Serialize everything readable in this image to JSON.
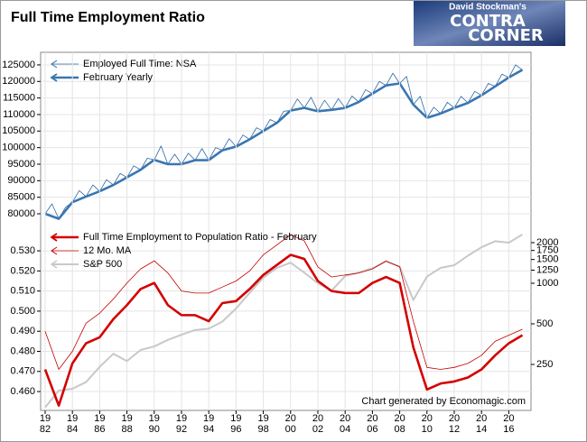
{
  "logo": {
    "byline": "David Stockman's",
    "line1": "CONTRA",
    "line2": "CORNER"
  },
  "chart_data": [
    {
      "type": "line",
      "title": "Full Time Employment Ratio",
      "legend": "upper left",
      "grid": true,
      "xlim": [
        1981.67,
        2017.63
      ],
      "ylim": [
        76460,
        128800
      ],
      "yticks": [
        80000,
        85000,
        90000,
        95000,
        100000,
        105000,
        110000,
        115000,
        120000,
        125000
      ],
      "series": [
        {
          "name": "Employed Full Time: NSA",
          "color": "#2f6aa8",
          "width": 0.8,
          "x": [
            1982,
            1982.5,
            1983,
            1983.5,
            1984,
            1984.5,
            1985,
            1985.5,
            1986,
            1986.5,
            1987,
            1987.5,
            1988,
            1988.5,
            1989,
            1989.5,
            1990,
            1990.5,
            1991,
            1991.5,
            1992,
            1992.5,
            1993,
            1993.5,
            1994,
            1994.5,
            1995,
            1995.5,
            1996,
            1996.5,
            1997,
            1997.5,
            1998,
            1998.5,
            1999,
            1999.5,
            2000,
            2000.5,
            2001,
            2001.5,
            2002,
            2002.5,
            2003,
            2003.5,
            2004,
            2004.5,
            2005,
            2005.5,
            2006,
            2006.5,
            2007,
            2007.5,
            2008,
            2008.5,
            2009,
            2009.5,
            2010,
            2010.5,
            2011,
            2011.5,
            2012,
            2012.5,
            2013,
            2013.5,
            2014,
            2014.5,
            2015,
            2015.5,
            2016,
            2016.5,
            2017
          ],
          "values": [
            80000,
            83000,
            78500,
            82000,
            83500,
            87000,
            85200,
            88700,
            86800,
            90300,
            88700,
            92200,
            91000,
            94500,
            93300,
            96800,
            96300,
            100500,
            95000,
            98000,
            95000,
            98300,
            96200,
            99700,
            96200,
            100000,
            99200,
            102700,
            100300,
            103800,
            102500,
            106000,
            105000,
            108500,
            107500,
            111000,
            111200,
            114700,
            112000,
            115200,
            111000,
            114300,
            111400,
            114800,
            112000,
            115600,
            113800,
            117500,
            116300,
            120000,
            118800,
            122500,
            119400,
            121500,
            113000,
            115500,
            109000,
            112200,
            110300,
            113700,
            112000,
            115500,
            113500,
            117000,
            115800,
            119400,
            118500,
            122200,
            121200,
            125000,
            123500
          ]
        },
        {
          "name": "February Yearly",
          "color": "#3a76b0",
          "width": 2.6,
          "x": [
            1982,
            1983,
            1984,
            1985,
            1986,
            1987,
            1988,
            1989,
            1990,
            1991,
            1992,
            1993,
            1994,
            1995,
            1996,
            1997,
            1998,
            1999,
            2000,
            2001,
            2002,
            2003,
            2004,
            2005,
            2006,
            2007,
            2008,
            2009,
            2010,
            2011,
            2012,
            2013,
            2014,
            2015,
            2016,
            2017
          ],
          "values": [
            80000,
            78500,
            83500,
            85200,
            86800,
            88700,
            91000,
            93300,
            96300,
            95000,
            95000,
            96200,
            96200,
            99200,
            100300,
            102500,
            105000,
            107500,
            111200,
            112000,
            111000,
            111400,
            112000,
            113800,
            116300,
            118800,
            119400,
            113000,
            109000,
            110300,
            112000,
            113500,
            115800,
            118500,
            121200,
            123500
          ]
        }
      ]
    },
    {
      "type": "line",
      "legend": "upper left",
      "grid": true,
      "annotation": "Chart generated by Economagic.com",
      "xlim": [
        1981.67,
        2017.63
      ],
      "ylim": [
        0.4506,
        0.5426
      ],
      "xticks": [
        {
          "value": 1982,
          "label": "19 82"
        },
        {
          "value": 1984,
          "label": "19 84"
        },
        {
          "value": 1986,
          "label": "19 86"
        },
        {
          "value": 1988,
          "label": "19 88"
        },
        {
          "value": 1990,
          "label": "19 90"
        },
        {
          "value": 1992,
          "label": "19 92"
        },
        {
          "value": 1994,
          "label": "19 94"
        },
        {
          "value": 1996,
          "label": "19 96"
        },
        {
          "value": 1998,
          "label": "19 98"
        },
        {
          "value": 2000,
          "label": "20 00"
        },
        {
          "value": 2002,
          "label": "20 02"
        },
        {
          "value": 2004,
          "label": "20 04"
        },
        {
          "value": 2006,
          "label": "20 06"
        },
        {
          "value": 2008,
          "label": "20 08"
        },
        {
          "value": 2010,
          "label": "20 10"
        },
        {
          "value": 2012,
          "label": "20 12"
        },
        {
          "value": 2014,
          "label": "20 14"
        },
        {
          "value": 2016,
          "label": "20 16"
        }
      ],
      "yticks": [
        {
          "value": 0.46,
          "label": "0.460"
        },
        {
          "value": 0.47,
          "label": "0.470"
        },
        {
          "value": 0.48,
          "label": "0.480"
        },
        {
          "value": 0.49,
          "label": "0.490"
        },
        {
          "value": 0.5,
          "label": "0.500"
        },
        {
          "value": 0.51,
          "label": "0.510"
        },
        {
          "value": 0.52,
          "label": "0.520"
        },
        {
          "value": 0.53,
          "label": "0.530"
        }
      ],
      "y2lim": [
        114,
        2680
      ],
      "y2log": true,
      "y2ticks": [
        250,
        500,
        1000,
        1250,
        1500,
        1750,
        2000
      ],
      "series": [
        {
          "name": "Full Time Employment to Population Ratio - February",
          "color": "#d40000",
          "width": 2.6,
          "x": [
            1982,
            1983,
            1984,
            1985,
            1986,
            1987,
            1988,
            1989,
            1990,
            1991,
            1992,
            1993,
            1994,
            1995,
            1996,
            1997,
            1998,
            1999,
            2000,
            2001,
            2002,
            2003,
            2004,
            2005,
            2006,
            2007,
            2008,
            2009,
            2010,
            2011,
            2012,
            2013,
            2014,
            2015,
            2016,
            2017
          ],
          "values": [
            0.471,
            0.453,
            0.474,
            0.484,
            0.487,
            0.496,
            0.503,
            0.511,
            0.514,
            0.503,
            0.498,
            0.498,
            0.495,
            0.504,
            0.505,
            0.511,
            0.518,
            0.523,
            0.528,
            0.526,
            0.515,
            0.51,
            0.509,
            0.509,
            0.514,
            0.517,
            0.514,
            0.482,
            0.461,
            0.464,
            0.465,
            0.467,
            0.471,
            0.478,
            0.484,
            0.488
          ]
        },
        {
          "name": "12 Mo. MA",
          "color": "#c40000",
          "width": 0.8,
          "x": [
            1982,
            1983,
            1984,
            1985,
            1986,
            1987,
            1988,
            1989,
            1990,
            1991,
            1992,
            1993,
            1994,
            1995,
            1996,
            1997,
            1998,
            1999,
            2000,
            2001,
            2002,
            2003,
            2004,
            2005,
            2006,
            2007,
            2008,
            2009,
            2010,
            2011,
            2012,
            2013,
            2014,
            2015,
            2016,
            2017
          ],
          "values": [
            0.49,
            0.471,
            0.48,
            0.494,
            0.499,
            0.506,
            0.514,
            0.521,
            0.525,
            0.519,
            0.51,
            0.509,
            0.509,
            0.512,
            0.515,
            0.52,
            0.528,
            0.533,
            0.538,
            0.535,
            0.522,
            0.517,
            0.518,
            0.519,
            0.521,
            0.525,
            0.522,
            0.495,
            0.472,
            0.471,
            0.472,
            0.474,
            0.478,
            0.485,
            0.488,
            0.491
          ]
        },
        {
          "name": "S&P 500",
          "color": "#c8c8c8",
          "width": 2,
          "axis": "y2",
          "x": [
            1982,
            1983,
            1984,
            1985,
            1986,
            1987,
            1988,
            1989,
            1990,
            1991,
            1992,
            1993,
            1994,
            1995,
            1996,
            1997,
            1998,
            1999,
            2000,
            2001,
            2002,
            2003,
            2004,
            2005,
            2006,
            2007,
            2008,
            2009,
            2010,
            2011,
            2012,
            2013,
            2014,
            2015,
            2016,
            2017
          ],
          "values": [
            120,
            160,
            165,
            185,
            240,
            300,
            265,
            320,
            340,
            380,
            415,
            450,
            460,
            520,
            650,
            850,
            1100,
            1300,
            1420,
            1200,
            1000,
            880,
            1130,
            1200,
            1290,
            1450,
            1330,
            750,
            1120,
            1300,
            1360,
            1600,
            1850,
            2050,
            2000,
            2300
          ]
        }
      ]
    }
  ]
}
